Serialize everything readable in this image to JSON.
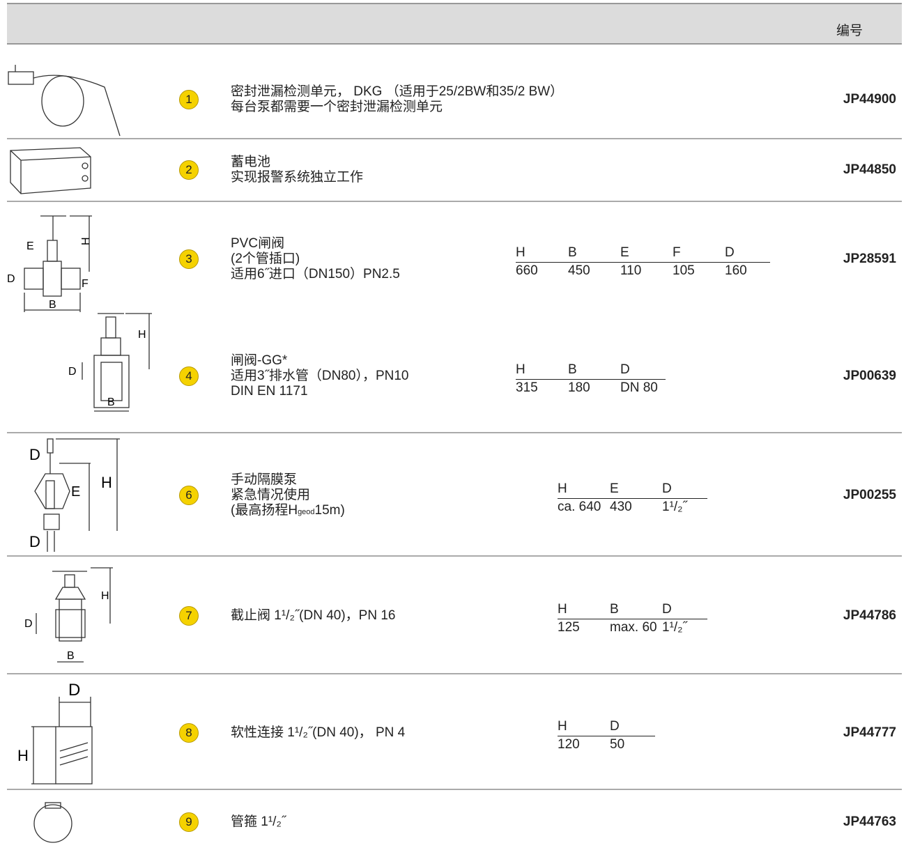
{
  "header": {
    "code_label": "编号"
  },
  "rows": [
    {
      "no": "1",
      "desc": [
        "密封泄漏检测单元， DKG （适用于25/2BW和35/2 BW）",
        "每台泵都需要一个密封泄漏检测单元"
      ],
      "code": "JP44900"
    },
    {
      "no": "2",
      "desc": [
        "蓄电池",
        "实现报警系统独立工作"
      ],
      "code": "JP44850"
    },
    {
      "no": "3",
      "desc": [
        "PVC闸阀",
        "(2个管插口)",
        "适用6˝进口（DN150）PN2.5"
      ],
      "dims": {
        "labels": [
          "H",
          "B",
          "E",
          "F",
          "D"
        ],
        "values": [
          "660",
          "450",
          "110",
          "105",
          "160"
        ]
      },
      "code": "JP28591",
      "figure_labels": [
        "E",
        "H",
        "D",
        "F",
        "B"
      ]
    },
    {
      "no": "4",
      "desc": [
        "闸阀-GG*",
        "适用3˝排水管（DN80），PN10",
        "DIN EN 1171"
      ],
      "dims": {
        "labels": [
          "H",
          "B",
          "D"
        ],
        "values": [
          "315",
          "180",
          "DN 80"
        ]
      },
      "code": "JP00639",
      "figure_labels": [
        "H",
        "D",
        "B"
      ]
    },
    {
      "no": "6",
      "desc": [
        "手动隔膜泵",
        "紧急情况使用",
        [
          "(最高扬程H",
          "geod",
          "15m)"
        ]
      ],
      "dims": {
        "labels": [
          "H",
          "E",
          "D"
        ],
        "values": [
          "ca. 640",
          "430",
          "1¹/₂˝"
        ]
      },
      "code": "JP00255",
      "figure_labels": [
        "D",
        "E",
        "H",
        "D"
      ]
    },
    {
      "no": "7",
      "desc": [
        "截止阀 1¹/₂˝(DN 40)，PN 16"
      ],
      "dims": {
        "labels": [
          "H",
          "B",
          "D"
        ],
        "values": [
          "125",
          "max. 60",
          "1¹/₂˝"
        ]
      },
      "code": "JP44786",
      "figure_labels": [
        "H",
        "D",
        "B"
      ]
    },
    {
      "no": "8",
      "desc": [
        "软性连接 1¹/₂˝(DN 40)， PN 4"
      ],
      "dims": {
        "labels": [
          "H",
          "D"
        ],
        "values": [
          "120",
          "50"
        ]
      },
      "code": "JP44777",
      "figure_labels": [
        "D",
        "H"
      ]
    },
    {
      "no": "9",
      "desc": [
        "管箍 1¹/₂˝"
      ],
      "code": "JP44763"
    }
  ]
}
